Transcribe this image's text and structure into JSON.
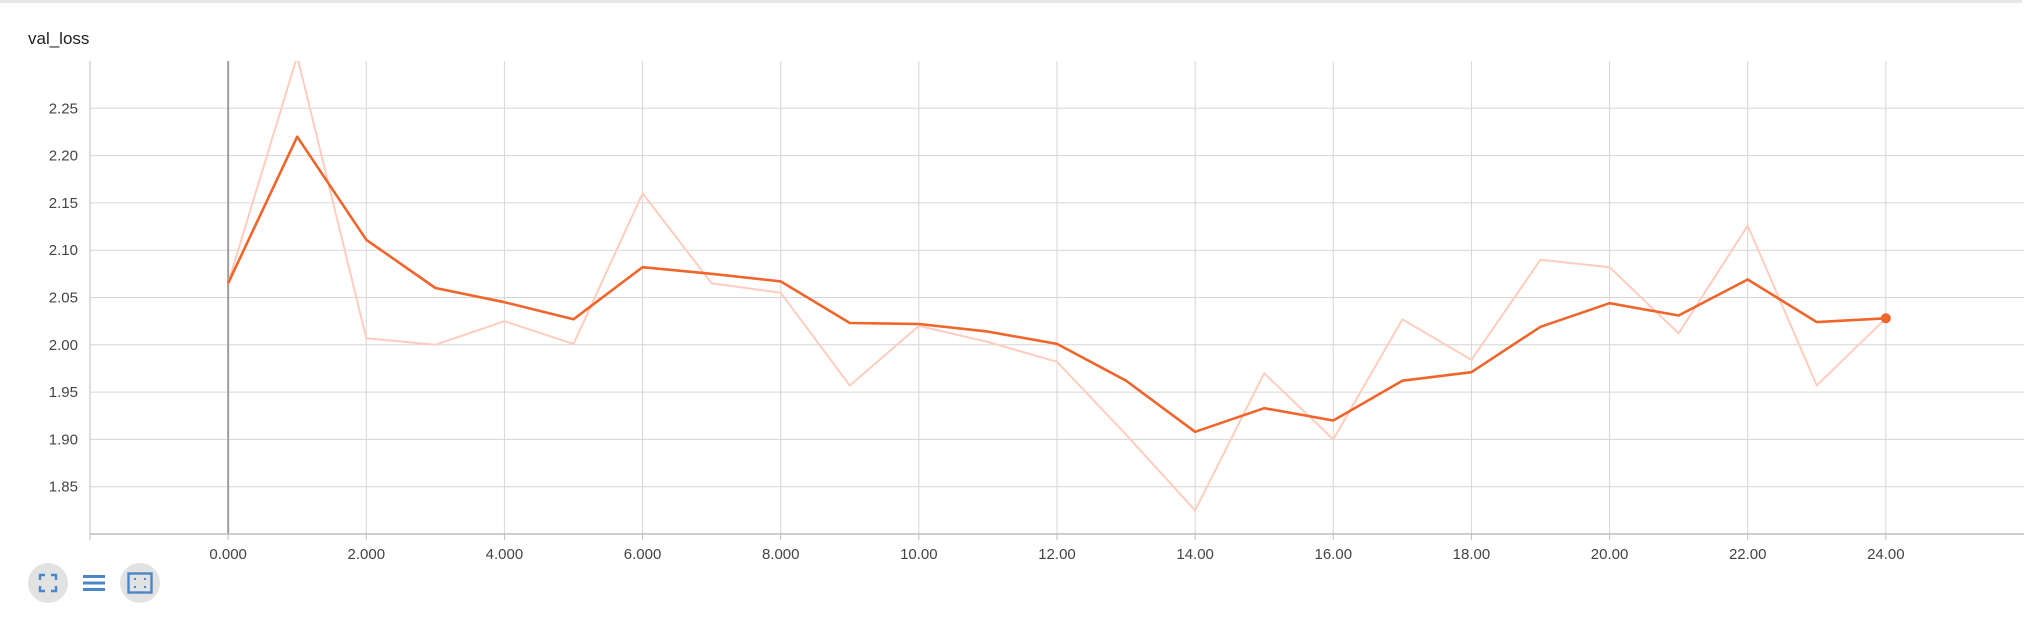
{
  "panel": {
    "title": "val_loss"
  },
  "toolbar": {
    "buttons": [
      {
        "name": "toggle-expand-button",
        "icon": "fullscreen-icon",
        "active": true
      },
      {
        "name": "toggle-log-scale-button",
        "icon": "lines-icon",
        "active": false
      },
      {
        "name": "fit-domain-button",
        "icon": "fit-to-data-icon",
        "active": true
      }
    ]
  },
  "colors": {
    "smoothed": "#f0652b",
    "raw": "#ffcdbd",
    "grid": "#d6d6d6",
    "axis": "#bdbdbd",
    "zero_axis": "#9e9e9e"
  },
  "chart_data": {
    "type": "line",
    "title": "val_loss",
    "xlabel": "",
    "ylabel": "",
    "xlim": [
      -2,
      26
    ],
    "ylim": [
      1.8,
      2.3
    ],
    "x_ticks": [
      0,
      2,
      4,
      6,
      8,
      10,
      12,
      14,
      16,
      18,
      20,
      22,
      24
    ],
    "x_tick_labels": [
      "0.000",
      "2.000",
      "4.000",
      "6.000",
      "8.000",
      "10.00",
      "12.00",
      "14.00",
      "16.00",
      "18.00",
      "20.00",
      "22.00",
      "24.00"
    ],
    "y_ticks": [
      1.85,
      1.9,
      1.95,
      2.0,
      2.05,
      2.1,
      2.15,
      2.2,
      2.25
    ],
    "y_tick_labels": [
      "1.85",
      "1.90",
      "1.95",
      "2.00",
      "2.05",
      "2.10",
      "2.15",
      "2.20",
      "2.25"
    ],
    "grid": true,
    "x": [
      0,
      1,
      2,
      3,
      4,
      5,
      6,
      7,
      8,
      9,
      10,
      11,
      12,
      13,
      14,
      15,
      16,
      17,
      18,
      19,
      20,
      21,
      22,
      23,
      24
    ],
    "series": [
      {
        "role": "raw",
        "values": [
          2.065,
          2.305,
          2.007,
          2.0,
          2.025,
          2.001,
          2.16,
          2.065,
          2.055,
          1.957,
          2.02,
          2.003,
          1.982,
          1.905,
          1.825,
          1.97,
          1.9,
          2.027,
          1.984,
          2.09,
          2.082,
          2.012,
          2.126,
          1.957,
          2.028
        ]
      },
      {
        "role": "smoothed",
        "values": [
          2.065,
          2.22,
          2.111,
          2.06,
          2.045,
          2.027,
          2.082,
          2.075,
          2.067,
          2.023,
          2.022,
          2.014,
          2.001,
          1.962,
          1.908,
          1.933,
          1.92,
          1.962,
          1.971,
          2.019,
          2.044,
          2.031,
          2.069,
          2.024,
          2.028
        ]
      }
    ]
  }
}
